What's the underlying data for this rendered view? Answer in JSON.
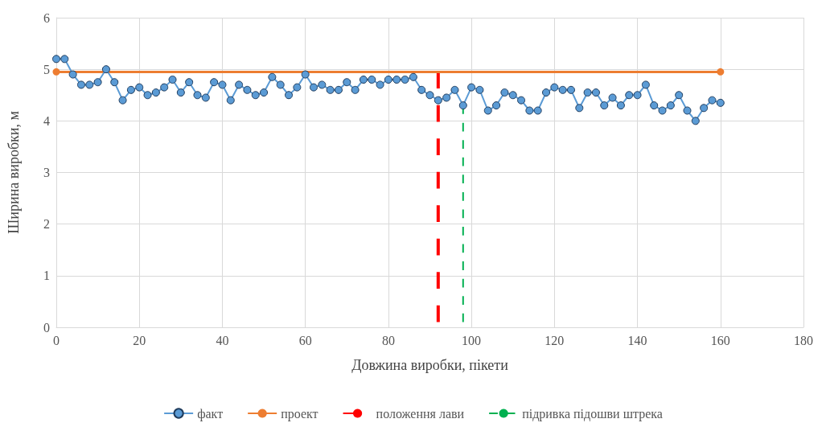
{
  "chart_data": {
    "type": "line",
    "xlabel": "Довжина виробки, пікети",
    "ylabel": "Ширина виробки, м",
    "xlim": [
      0,
      180
    ],
    "xticks": [
      0,
      20,
      40,
      60,
      80,
      100,
      120,
      140,
      160,
      180
    ],
    "ylim": [
      0,
      6
    ],
    "yticks": [
      0,
      1,
      2,
      3,
      4,
      5,
      6
    ],
    "grid": true,
    "legend": "bottom",
    "series": [
      {
        "name": "факт",
        "color": "#5b9bd5",
        "marker": "circle",
        "line_style": "solid",
        "x": [
          0,
          2,
          4,
          6,
          8,
          10,
          12,
          14,
          16,
          18,
          20,
          22,
          24,
          26,
          28,
          30,
          32,
          34,
          36,
          38,
          40,
          42,
          44,
          46,
          48,
          50,
          52,
          54,
          56,
          58,
          60,
          62,
          64,
          66,
          68,
          70,
          72,
          74,
          76,
          78,
          80,
          82,
          84,
          86,
          88,
          90,
          92,
          94,
          96,
          98,
          100,
          102,
          104,
          106,
          108,
          110,
          112,
          114,
          116,
          118,
          120,
          122,
          124,
          126,
          128,
          130,
          132,
          134,
          136,
          138,
          140,
          142,
          144,
          146,
          148,
          150,
          152,
          154,
          156,
          158,
          160
        ],
        "values": [
          5.2,
          5.2,
          4.9,
          4.7,
          4.7,
          4.75,
          5.0,
          4.75,
          4.4,
          4.6,
          4.65,
          4.5,
          4.55,
          4.65,
          4.8,
          4.55,
          4.75,
          4.5,
          4.45,
          4.75,
          4.7,
          4.4,
          4.7,
          4.6,
          4.5,
          4.55,
          4.85,
          4.7,
          4.5,
          4.65,
          4.9,
          4.65,
          4.7,
          4.6,
          4.6,
          4.75,
          4.6,
          4.8,
          4.8,
          4.7,
          4.8,
          4.8,
          4.8,
          4.85,
          4.6,
          4.5,
          4.4,
          4.45,
          4.6,
          4.3,
          4.65,
          4.6,
          4.2,
          4.3,
          4.55,
          4.5,
          4.4,
          4.2,
          4.2,
          4.55,
          4.65,
          4.6,
          4.6,
          4.25,
          4.55,
          4.55,
          4.3,
          4.45,
          4.3,
          4.5,
          4.5,
          4.7,
          4.3,
          4.2,
          4.3,
          4.5,
          4.2,
          4.0,
          4.25,
          4.4,
          4.35
        ]
      },
      {
        "name": "проект",
        "color": "#ed7d31",
        "marker": "circle",
        "line_style": "solid",
        "x": [
          0,
          160
        ],
        "values": [
          4.95,
          4.95
        ]
      },
      {
        "name": "положення лави",
        "color": "#ff0000",
        "marker": "none",
        "line_style": "dashed",
        "x": [
          92,
          92
        ],
        "values": [
          0.1,
          4.95
        ]
      },
      {
        "name": "підривка підошви штрека",
        "color": "#00b050",
        "marker": "none",
        "line_style": "dashed",
        "x": [
          98,
          98
        ],
        "values": [
          0.1,
          4.3
        ]
      }
    ]
  }
}
